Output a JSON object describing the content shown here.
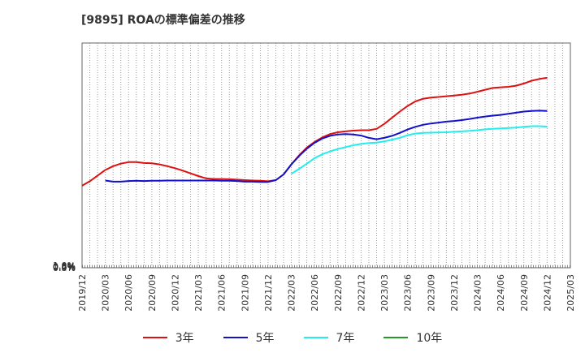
{
  "chart_data": {
    "type": "line",
    "title": "[9895]  ROAの標準偏差の推移",
    "xlabel": "",
    "ylabel": "",
    "x_ticks": [
      "2019/12",
      "2020/03",
      "2020/06",
      "2020/09",
      "2020/12",
      "2021/03",
      "2021/06",
      "2021/09",
      "2021/12",
      "2022/03",
      "2022/06",
      "2022/09",
      "2022/12",
      "2023/03",
      "2023/06",
      "2023/09",
      "2023/12",
      "2024/03",
      "2024/06",
      "2024/09",
      "2024/12",
      "2025/03"
    ],
    "y_ticks": [
      "0.0%",
      "0.2%",
      "0.4%",
      "0.6%",
      "0.8%",
      "1.0%"
    ],
    "ylim": [
      0,
      1.0
    ],
    "grid": true,
    "legend_position": "bottom",
    "series": [
      {
        "name": "3年",
        "color": "#dd1111",
        "x": [
          "2019/12",
          "2020/01",
          "2020/02",
          "2020/03",
          "2020/04",
          "2020/05",
          "2020/06",
          "2020/07",
          "2020/08",
          "2020/09",
          "2020/10",
          "2020/11",
          "2020/12",
          "2021/01",
          "2021/02",
          "2021/03",
          "2021/04",
          "2021/05",
          "2021/06",
          "2021/07",
          "2021/08",
          "2021/09",
          "2021/10",
          "2021/11",
          "2021/12",
          "2022/01",
          "2022/02",
          "2022/03",
          "2022/04",
          "2022/05",
          "2022/06",
          "2022/07",
          "2022/08",
          "2022/09",
          "2022/10",
          "2022/11",
          "2022/12",
          "2023/01",
          "2023/02",
          "2023/03",
          "2023/04",
          "2023/05",
          "2023/06",
          "2023/07",
          "2023/08",
          "2023/09",
          "2023/10",
          "2023/11",
          "2023/12",
          "2024/01",
          "2024/02",
          "2024/03",
          "2024/04",
          "2024/05",
          "2024/06",
          "2024/07",
          "2024/08",
          "2024/09",
          "2024/10",
          "2024/11",
          "2024/12"
        ],
        "values": [
          0.365,
          0.385,
          0.41,
          0.435,
          0.452,
          0.463,
          0.47,
          0.47,
          0.466,
          0.465,
          0.46,
          0.452,
          0.443,
          0.432,
          0.42,
          0.408,
          0.398,
          0.395,
          0.395,
          0.394,
          0.392,
          0.39,
          0.388,
          0.387,
          0.385,
          0.39,
          0.415,
          0.46,
          0.5,
          0.535,
          0.56,
          0.58,
          0.595,
          0.603,
          0.607,
          0.61,
          0.612,
          0.612,
          0.618,
          0.64,
          0.668,
          0.695,
          0.72,
          0.74,
          0.752,
          0.757,
          0.76,
          0.763,
          0.766,
          0.77,
          0.775,
          0.783,
          0.792,
          0.8,
          0.803,
          0.805,
          0.81,
          0.82,
          0.832,
          0.84,
          0.845
        ]
      },
      {
        "name": "5年",
        "color": "#1111cc",
        "x": [
          "2020/03",
          "2020/04",
          "2020/05",
          "2020/06",
          "2020/07",
          "2020/08",
          "2020/09",
          "2020/10",
          "2020/11",
          "2020/12",
          "2021/01",
          "2021/02",
          "2021/03",
          "2021/04",
          "2021/05",
          "2021/06",
          "2021/07",
          "2021/08",
          "2021/09",
          "2021/10",
          "2021/11",
          "2021/12",
          "2022/01",
          "2022/02",
          "2022/03",
          "2022/04",
          "2022/05",
          "2022/06",
          "2022/07",
          "2022/08",
          "2022/09",
          "2022/10",
          "2022/11",
          "2022/12",
          "2023/01",
          "2023/02",
          "2023/03",
          "2023/04",
          "2023/05",
          "2023/06",
          "2023/07",
          "2023/08",
          "2023/09",
          "2023/10",
          "2023/11",
          "2023/12",
          "2024/01",
          "2024/02",
          "2024/03",
          "2024/04",
          "2024/05",
          "2024/06",
          "2024/07",
          "2024/08",
          "2024/09",
          "2024/10",
          "2024/11",
          "2024/12"
        ],
        "values": [
          0.388,
          0.383,
          0.383,
          0.386,
          0.387,
          0.386,
          0.387,
          0.387,
          0.388,
          0.388,
          0.388,
          0.388,
          0.388,
          0.388,
          0.388,
          0.387,
          0.387,
          0.386,
          0.383,
          0.383,
          0.382,
          0.382,
          0.39,
          0.415,
          0.46,
          0.497,
          0.53,
          0.556,
          0.575,
          0.587,
          0.593,
          0.595,
          0.593,
          0.588,
          0.578,
          0.572,
          0.578,
          0.587,
          0.6,
          0.615,
          0.627,
          0.636,
          0.642,
          0.646,
          0.65,
          0.653,
          0.657,
          0.662,
          0.668,
          0.673,
          0.677,
          0.68,
          0.685,
          0.69,
          0.695,
          0.698,
          0.699,
          0.698
        ]
      },
      {
        "name": "7年",
        "color": "#22eeee",
        "x": [
          "2022/03",
          "2022/04",
          "2022/05",
          "2022/06",
          "2022/07",
          "2022/08",
          "2022/09",
          "2022/10",
          "2022/11",
          "2022/12",
          "2023/01",
          "2023/02",
          "2023/03",
          "2023/04",
          "2023/05",
          "2023/06",
          "2023/07",
          "2023/08",
          "2023/09",
          "2023/10",
          "2023/11",
          "2023/12",
          "2024/01",
          "2024/02",
          "2024/03",
          "2024/04",
          "2024/05",
          "2024/06",
          "2024/07",
          "2024/08",
          "2024/09",
          "2024/10",
          "2024/11",
          "2024/12"
        ],
        "values": [
          0.418,
          0.44,
          0.463,
          0.488,
          0.505,
          0.518,
          0.528,
          0.537,
          0.545,
          0.551,
          0.555,
          0.557,
          0.562,
          0.57,
          0.578,
          0.59,
          0.597,
          0.6,
          0.601,
          0.602,
          0.603,
          0.605,
          0.607,
          0.609,
          0.612,
          0.616,
          0.618,
          0.62,
          0.622,
          0.624,
          0.627,
          0.63,
          0.63,
          0.628
        ]
      },
      {
        "name": "10年",
        "color": "#229922",
        "x": [],
        "values": []
      }
    ]
  }
}
